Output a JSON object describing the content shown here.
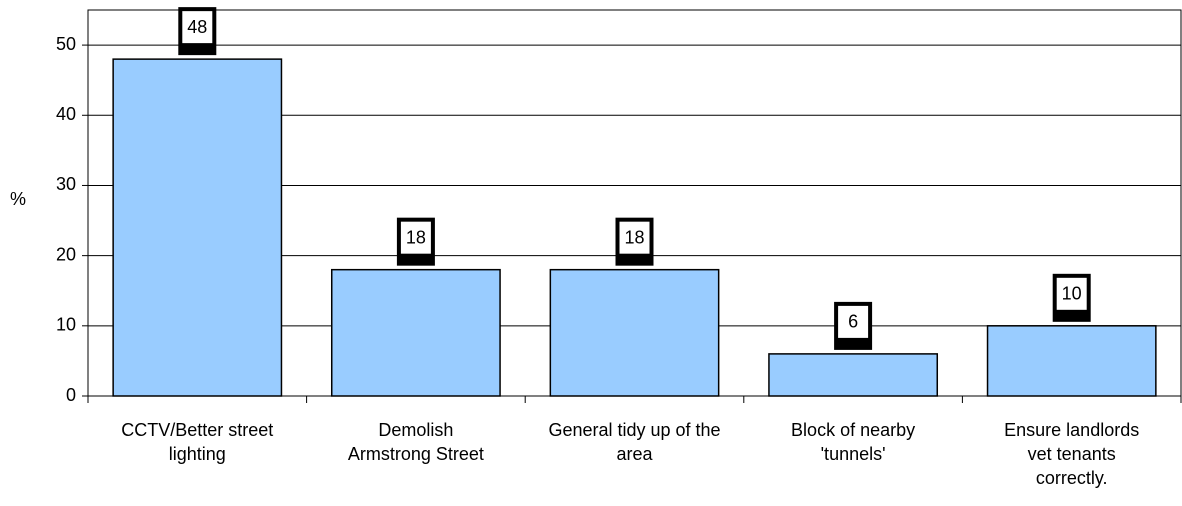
{
  "chart_data": {
    "type": "bar",
    "y_label": "%",
    "categories": [
      "CCTV/Better street lighting",
      "Demolish Armstrong Street",
      "General tidy up of the area",
      "Block of nearby 'tunnels'",
      "Ensure landlords vet tenants correctly."
    ],
    "values": [
      48,
      18,
      18,
      6,
      10
    ],
    "color": "#99ccff",
    "ylim": [
      0,
      55
    ],
    "yticks": [
      0,
      10,
      20,
      30,
      40,
      50
    ],
    "grid": true
  }
}
